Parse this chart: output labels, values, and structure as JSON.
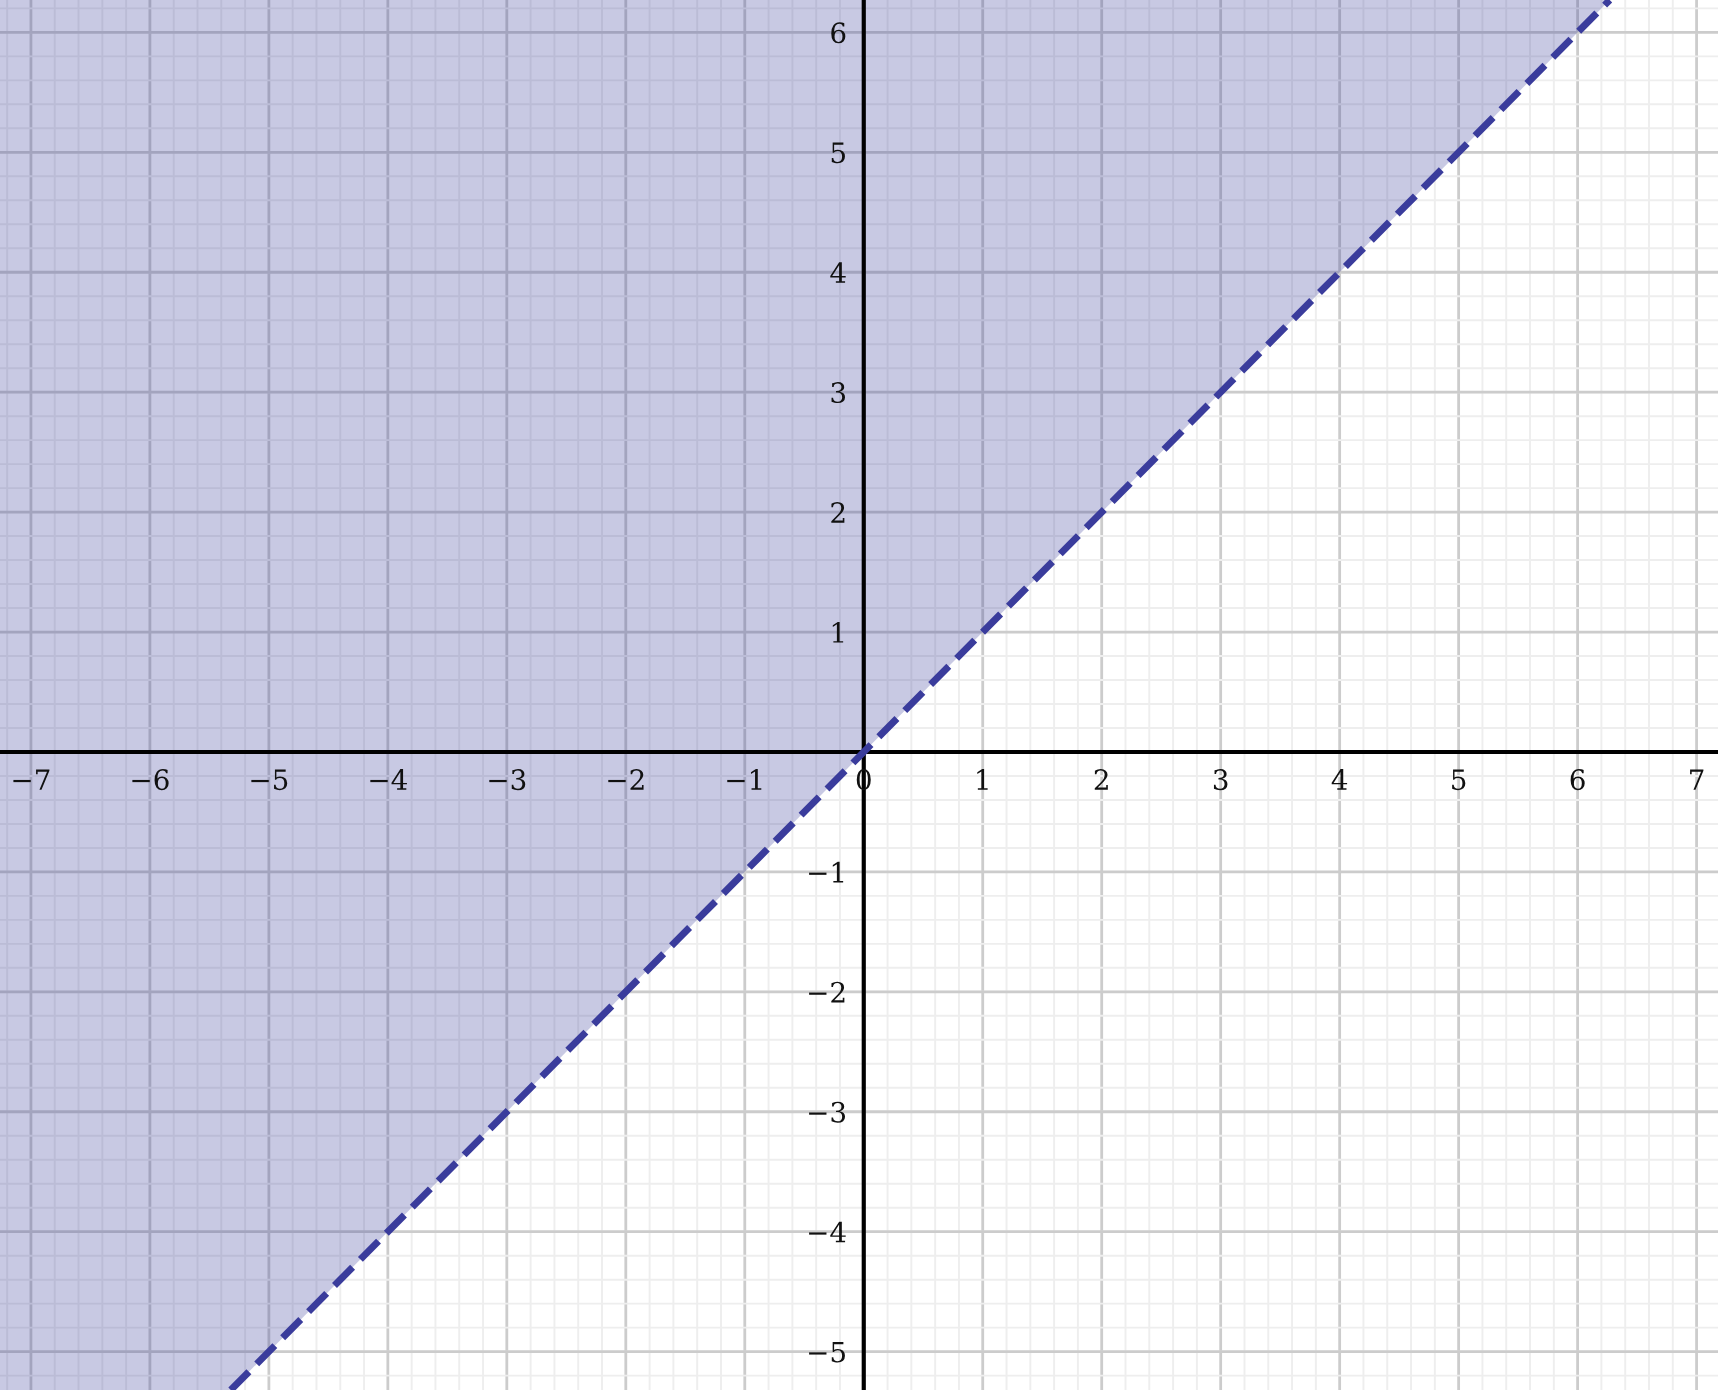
{
  "chart_data": {
    "type": "line",
    "series": [
      {
        "color": "#3a3c9c",
        "x": [
          -7.26,
          -5.32,
          6.27
        ],
        "values": [
          null,
          -5.32,
          6.27
        ],
        "lower": [
          -5.32,
          -5.32,
          6.27
        ],
        "upper": [
          6.27,
          6.27,
          6.27
        ],
        "line_style": "dashed"
      }
    ],
    "xlim": [
      -7.26,
      7.18
    ],
    "ylim": [
      -5.32,
      6.27
    ],
    "xticks": [
      -7,
      -6,
      -5,
      -4,
      -3,
      -2,
      -1,
      0,
      1,
      2,
      3,
      4,
      5,
      6,
      7
    ],
    "yticks": [
      -5,
      -4,
      -3,
      -2,
      -1,
      1,
      2,
      3,
      4,
      5,
      6
    ],
    "grid": true,
    "marker": "none",
    "legend": false
  }
}
